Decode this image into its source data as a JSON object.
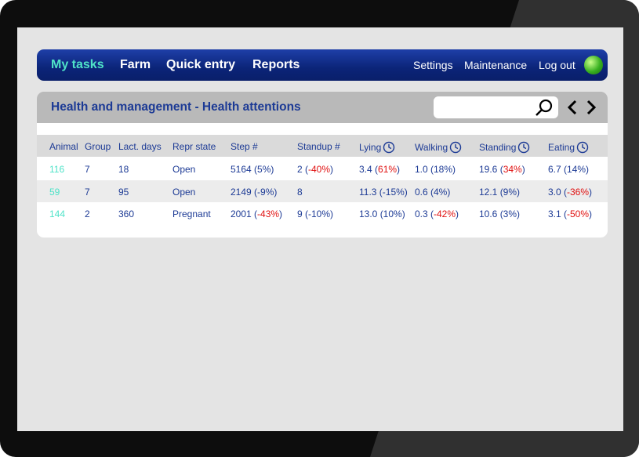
{
  "nav": {
    "left": [
      "My tasks",
      "Farm",
      "Quick entry",
      "Reports"
    ],
    "right": [
      "Settings",
      "Maintenance",
      "Log out"
    ]
  },
  "header": {
    "title": "Health and management - Health attentions"
  },
  "table": {
    "columns": [
      {
        "label": "Animal"
      },
      {
        "label": "Group"
      },
      {
        "label": "Lact. days"
      },
      {
        "label": "Repr state"
      },
      {
        "label": "Step #"
      },
      {
        "label": "Standup #"
      },
      {
        "label": "Lying",
        "timed": true
      },
      {
        "label": "Walking",
        "timed": true
      },
      {
        "label": "Standing",
        "timed": true
      },
      {
        "label": "Eating",
        "timed": true
      }
    ],
    "rows": [
      [
        "116",
        "7",
        "18",
        "Open",
        "5164 (5%)",
        {
          "before": "2 (",
          "alert": "-40%",
          "after": ")"
        },
        {
          "before": "3.4 (",
          "alert": "61%",
          "after": ")"
        },
        "1.0 (18%)",
        {
          "before": "19.6 (",
          "alert": "34%",
          "after": ")"
        },
        "6.7 (14%)"
      ],
      [
        "59",
        "7",
        "95",
        "Open",
        "2149 (-9%)",
        "8",
        "11.3 (-15%)",
        "0.6 (4%)",
        "12.1 (9%)",
        {
          "before": "3.0 (",
          "alert": "-36%",
          "after": ")"
        }
      ],
      [
        "144",
        "2",
        "360",
        "Pregnant",
        {
          "before": "2001 (",
          "alert": "-43%",
          "after": ")"
        },
        "9 (-10%)",
        "13.0 (10%)",
        {
          "before": "0.3 (",
          "alert": "-42%",
          "after": ")"
        },
        "10.6 (3%)",
        {
          "before": "3.1 (",
          "alert": "-50%",
          "after": ")"
        }
      ]
    ]
  }
}
